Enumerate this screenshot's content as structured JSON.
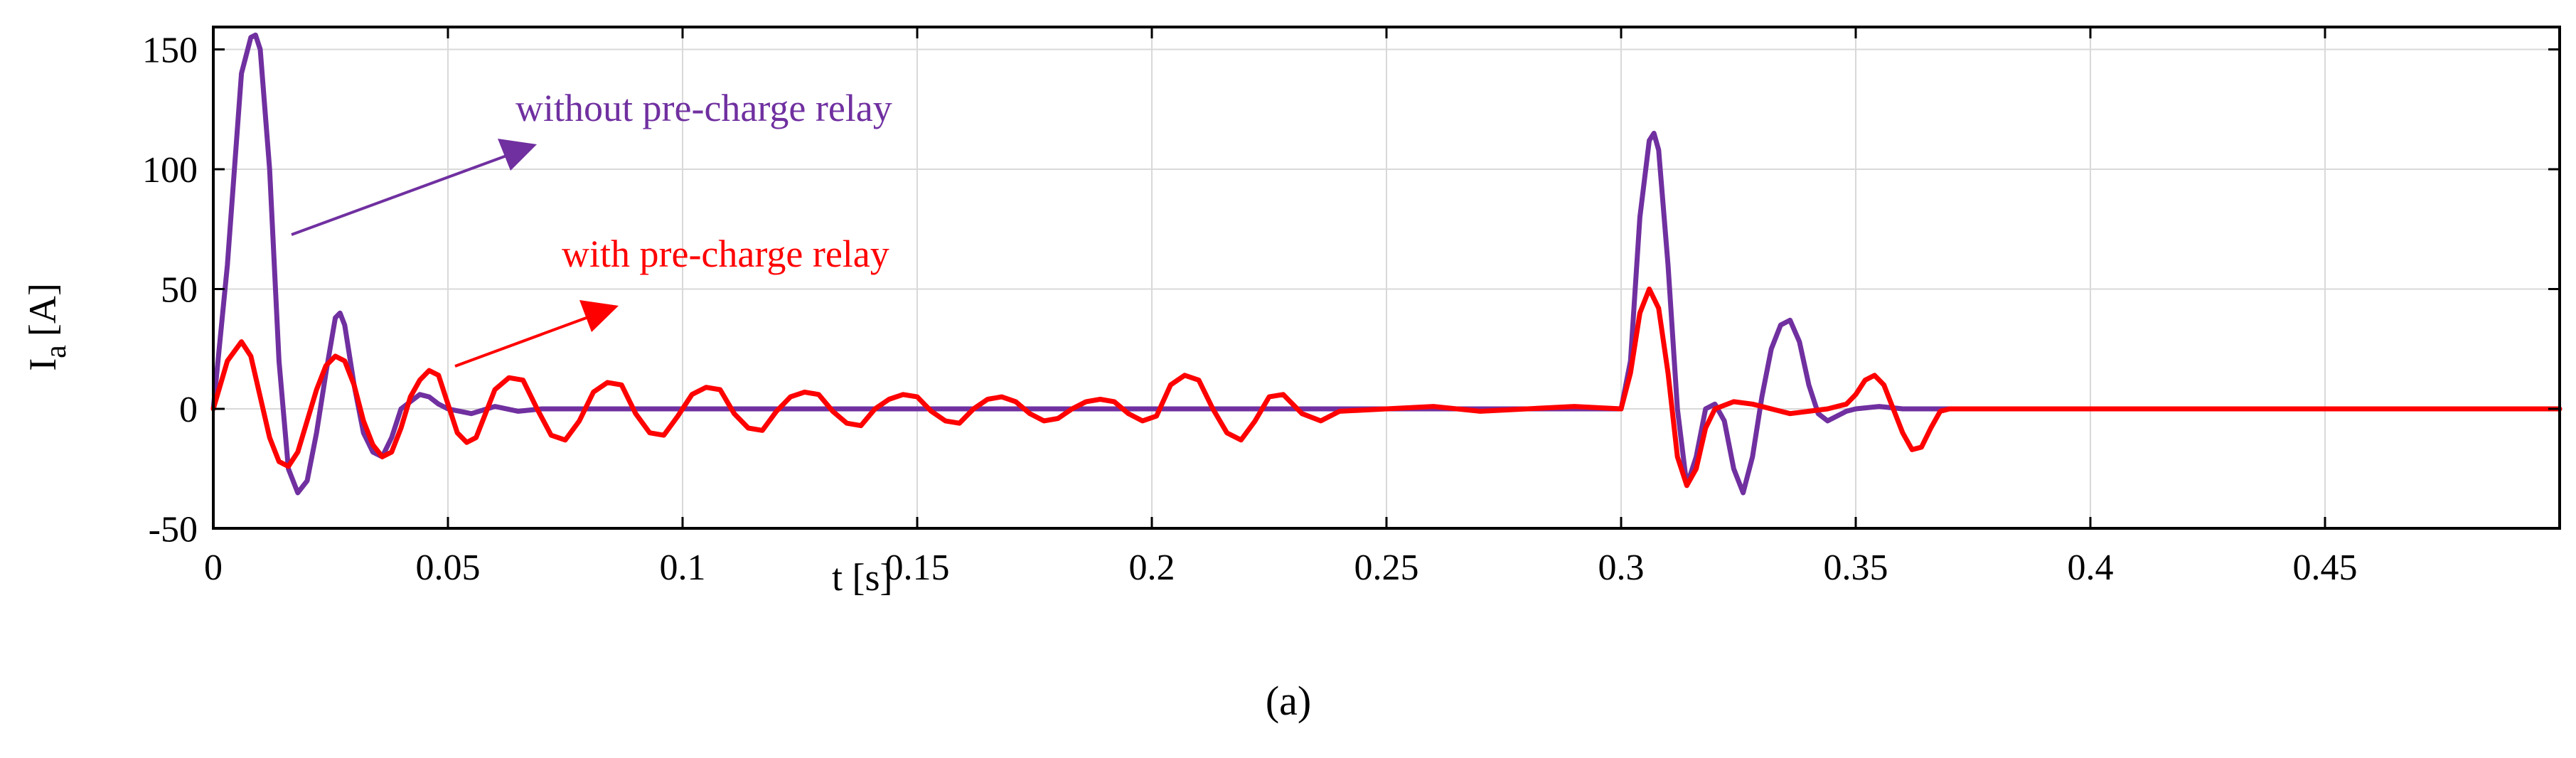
{
  "chart_data": {
    "type": "line",
    "xlabel": "t [s]",
    "ylabel_main": "I",
    "ylabel_sub": "a",
    "ylabel_unit": "[A]",
    "xlim": [
      0,
      0.5
    ],
    "ylim": [
      -50,
      160
    ],
    "xticks": [
      0,
      0.05,
      0.1,
      0.15,
      0.2,
      0.25,
      0.3,
      0.35,
      0.4,
      0.45
    ],
    "xtick_labels": [
      "0",
      "0.05",
      "0.1",
      "0.15",
      "0.2",
      "0.25",
      "0.3",
      "0.35",
      "0.4",
      "0.45"
    ],
    "yticks": [
      -50,
      0,
      50,
      100,
      150
    ],
    "ytick_labels": [
      "-50",
      "0",
      "50",
      "100",
      "150"
    ],
    "grid": true,
    "series": [
      {
        "name": "without pre-charge relay",
        "color": "#7030a0",
        "x": [
          0,
          0.003,
          0.006,
          0.008,
          0.009,
          0.01,
          0.012,
          0.014,
          0.016,
          0.018,
          0.02,
          0.022,
          0.024,
          0.026,
          0.027,
          0.028,
          0.03,
          0.032,
          0.034,
          0.036,
          0.038,
          0.04,
          0.042,
          0.044,
          0.046,
          0.048,
          0.05,
          0.055,
          0.06,
          0.065,
          0.07,
          0.08,
          0.09,
          0.1,
          0.12,
          0.15,
          0.2,
          0.25,
          0.3,
          0.302,
          0.304,
          0.306,
          0.307,
          0.308,
          0.31,
          0.312,
          0.314,
          0.316,
          0.318,
          0.32,
          0.322,
          0.324,
          0.326,
          0.328,
          0.33,
          0.332,
          0.334,
          0.336,
          0.338,
          0.34,
          0.342,
          0.344,
          0.346,
          0.348,
          0.35,
          0.355,
          0.36,
          0.365,
          0.37,
          0.4,
          0.45,
          0.5
        ],
        "y": [
          0,
          60,
          140,
          155,
          156,
          150,
          100,
          20,
          -25,
          -35,
          -30,
          -10,
          15,
          38,
          40,
          35,
          10,
          -10,
          -18,
          -20,
          -12,
          0,
          3,
          6,
          5,
          2,
          0,
          -2,
          1,
          -1,
          0,
          0,
          0,
          0,
          0,
          0,
          0,
          0,
          0,
          20,
          80,
          112,
          115,
          108,
          60,
          0,
          -32,
          -20,
          0,
          2,
          -5,
          -25,
          -35,
          -20,
          5,
          25,
          35,
          37,
          28,
          10,
          -2,
          -5,
          -3,
          -1,
          0,
          1,
          0,
          0,
          0,
          0,
          0,
          0
        ]
      },
      {
        "name": "with pre-charge relay",
        "color": "#ff0000",
        "x": [
          0,
          0.003,
          0.006,
          0.008,
          0.01,
          0.012,
          0.014,
          0.016,
          0.018,
          0.02,
          0.022,
          0.024,
          0.026,
          0.028,
          0.03,
          0.032,
          0.034,
          0.036,
          0.038,
          0.04,
          0.042,
          0.044,
          0.046,
          0.048,
          0.05,
          0.052,
          0.054,
          0.056,
          0.058,
          0.06,
          0.063,
          0.066,
          0.069,
          0.072,
          0.075,
          0.078,
          0.081,
          0.084,
          0.087,
          0.09,
          0.093,
          0.096,
          0.099,
          0.102,
          0.105,
          0.108,
          0.111,
          0.114,
          0.117,
          0.12,
          0.123,
          0.126,
          0.129,
          0.132,
          0.135,
          0.138,
          0.141,
          0.144,
          0.147,
          0.15,
          0.153,
          0.156,
          0.159,
          0.162,
          0.165,
          0.168,
          0.171,
          0.174,
          0.177,
          0.18,
          0.183,
          0.186,
          0.189,
          0.192,
          0.195,
          0.198,
          0.201,
          0.204,
          0.207,
          0.21,
          0.213,
          0.216,
          0.219,
          0.222,
          0.225,
          0.228,
          0.232,
          0.236,
          0.24,
          0.25,
          0.26,
          0.27,
          0.28,
          0.29,
          0.3,
          0.302,
          0.304,
          0.306,
          0.308,
          0.31,
          0.312,
          0.314,
          0.316,
          0.318,
          0.32,
          0.324,
          0.328,
          0.332,
          0.336,
          0.34,
          0.344,
          0.348,
          0.35,
          0.352,
          0.354,
          0.356,
          0.358,
          0.36,
          0.362,
          0.364,
          0.366,
          0.368,
          0.37,
          0.38,
          0.4,
          0.45,
          0.5
        ],
        "y": [
          0,
          20,
          28,
          22,
          5,
          -12,
          -22,
          -24,
          -18,
          -5,
          8,
          18,
          22,
          20,
          10,
          -5,
          -15,
          -20,
          -18,
          -8,
          5,
          12,
          16,
          14,
          2,
          -10,
          -14,
          -12,
          -2,
          8,
          13,
          12,
          0,
          -11,
          -13,
          -5,
          7,
          11,
          10,
          -2,
          -10,
          -11,
          -3,
          6,
          9,
          8,
          -2,
          -8,
          -9,
          -1,
          5,
          7,
          6,
          -1,
          -6,
          -7,
          0,
          4,
          6,
          5,
          -1,
          -5,
          -6,
          0,
          4,
          5,
          3,
          -2,
          -5,
          -4,
          0,
          3,
          4,
          3,
          -2,
          -5,
          -3,
          10,
          14,
          12,
          0,
          -10,
          -13,
          -5,
          5,
          6,
          -2,
          -5,
          -1,
          0,
          1,
          -1,
          0,
          1,
          0,
          15,
          40,
          50,
          42,
          15,
          -20,
          -32,
          -25,
          -8,
          0,
          3,
          2,
          0,
          -2,
          -1,
          0,
          2,
          6,
          12,
          14,
          10,
          0,
          -10,
          -17,
          -16,
          -8,
          -1,
          0,
          0,
          0,
          0,
          0
        ]
      }
    ],
    "annotations": [
      {
        "text": "without pre-charge relay",
        "color": "#7030a0"
      },
      {
        "text": "with pre-charge relay",
        "color": "#ff0000"
      }
    ]
  },
  "caption": "(a)"
}
